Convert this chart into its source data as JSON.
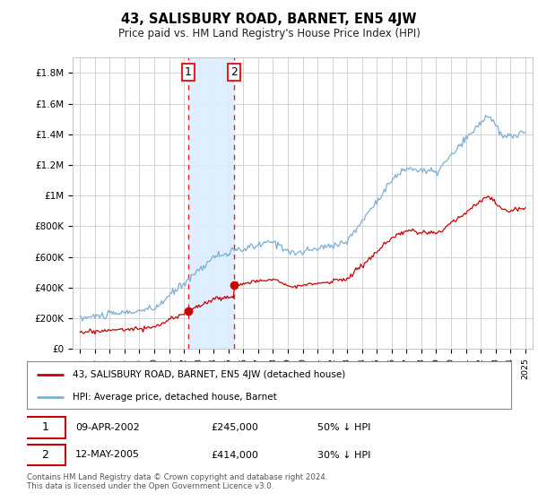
{
  "title": "43, SALISBURY ROAD, BARNET, EN5 4JW",
  "subtitle": "Price paid vs. HM Land Registry's House Price Index (HPI)",
  "ylabel_ticks": [
    "£0",
    "£200K",
    "£400K",
    "£600K",
    "£800K",
    "£1M",
    "£1.2M",
    "£1.4M",
    "£1.6M",
    "£1.8M"
  ],
  "ytick_values": [
    0,
    200000,
    400000,
    600000,
    800000,
    1000000,
    1200000,
    1400000,
    1600000,
    1800000
  ],
  "ylim": [
    0,
    1900000
  ],
  "xlim_start": 1994.5,
  "xlim_end": 2025.5,
  "hpi_color": "#7bafd4",
  "price_color": "#cc0000",
  "purchase1_date": 2002.27,
  "purchase1_price": 245000,
  "purchase2_date": 2005.36,
  "purchase2_price": 414000,
  "vline_color": "#dd2222",
  "shade_color": "#ddeeff",
  "legend_entry1": "43, SALISBURY ROAD, BARNET, EN5 4JW (detached house)",
  "legend_entry2": "HPI: Average price, detached house, Barnet",
  "table_row1_date": "09-APR-2002",
  "table_row1_price": "£245,000",
  "table_row1_hpi": "50% ↓ HPI",
  "table_row2_date": "12-MAY-2005",
  "table_row2_price": "£414,000",
  "table_row2_hpi": "30% ↓ HPI",
  "footer": "Contains HM Land Registry data © Crown copyright and database right 2024.\nThis data is licensed under the Open Government Licence v3.0.",
  "background_color": "#ffffff",
  "grid_color": "#cccccc"
}
